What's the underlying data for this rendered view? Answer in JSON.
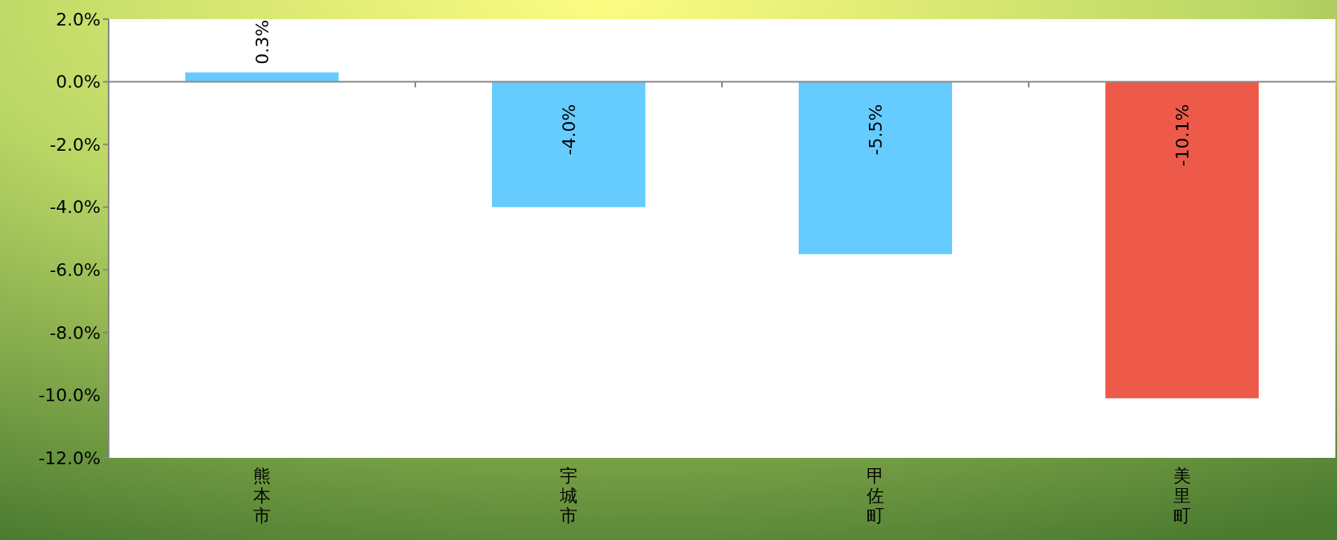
{
  "chart_data": {
    "type": "bar",
    "categories": [
      "熊本市",
      "宇城市",
      "甲佐町",
      "美里町"
    ],
    "values": [
      0.3,
      -4.0,
      -5.5,
      -10.1
    ],
    "colors": [
      "#66ccff",
      "#66ccff",
      "#66ccff",
      "#ee5a4a"
    ],
    "ylim": [
      -12,
      2
    ],
    "yticks": [
      {
        "value": 2,
        "label": "2.0%"
      },
      {
        "value": 0,
        "label": "0.0%"
      },
      {
        "value": -2,
        "label": "-2.0%"
      },
      {
        "value": -4,
        "label": "-4.0%"
      },
      {
        "value": -6,
        "label": "-6.0%"
      },
      {
        "value": -8,
        "label": "-8.0%"
      },
      {
        "value": -10,
        "label": "-10.0%"
      },
      {
        "value": -12,
        "label": "-12.0%"
      }
    ],
    "value_labels": [
      "0.3%",
      "-4.0%",
      "-5.5%",
      "-10.1%"
    ]
  }
}
